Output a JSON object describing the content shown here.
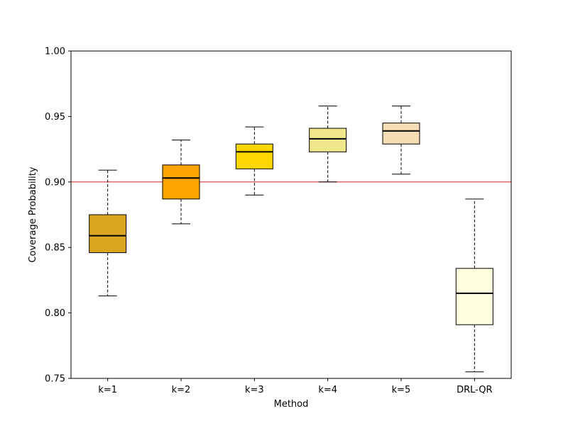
{
  "chart_data": {
    "type": "box",
    "title": "",
    "xlabel": "Method",
    "ylabel": "Coverage Probability",
    "ylim": [
      0.75,
      1.0
    ],
    "yticks": [
      "0.75",
      "0.80",
      "0.85",
      "0.90",
      "0.95",
      "1.00"
    ],
    "grid": false,
    "categories": [
      "k=1",
      "k=2",
      "k=3",
      "k=4",
      "k=5",
      "DRL-QR"
    ],
    "boxes": [
      {
        "whisker_low": 0.813,
        "q1": 0.846,
        "median": 0.859,
        "q3": 0.875,
        "whisker_high": 0.909,
        "color": "#DAA520"
      },
      {
        "whisker_low": 0.868,
        "q1": 0.887,
        "median": 0.903,
        "q3": 0.913,
        "whisker_high": 0.932,
        "color": "#FFA500"
      },
      {
        "whisker_low": 0.89,
        "q1": 0.91,
        "median": 0.923,
        "q3": 0.929,
        "whisker_high": 0.942,
        "color": "#FFD700"
      },
      {
        "whisker_low": 0.9,
        "q1": 0.923,
        "median": 0.933,
        "q3": 0.941,
        "whisker_high": 0.958,
        "color": "#F0E68C"
      },
      {
        "whisker_low": 0.906,
        "q1": 0.929,
        "median": 0.939,
        "q3": 0.945,
        "whisker_high": 0.958,
        "color": "#F5DEB3"
      },
      {
        "whisker_low": 0.755,
        "q1": 0.791,
        "median": 0.815,
        "q3": 0.834,
        "whisker_high": 0.887,
        "color": "#FFFFE0"
      }
    ],
    "reference_line": {
      "y": 0.9,
      "color": "#D62728"
    }
  }
}
